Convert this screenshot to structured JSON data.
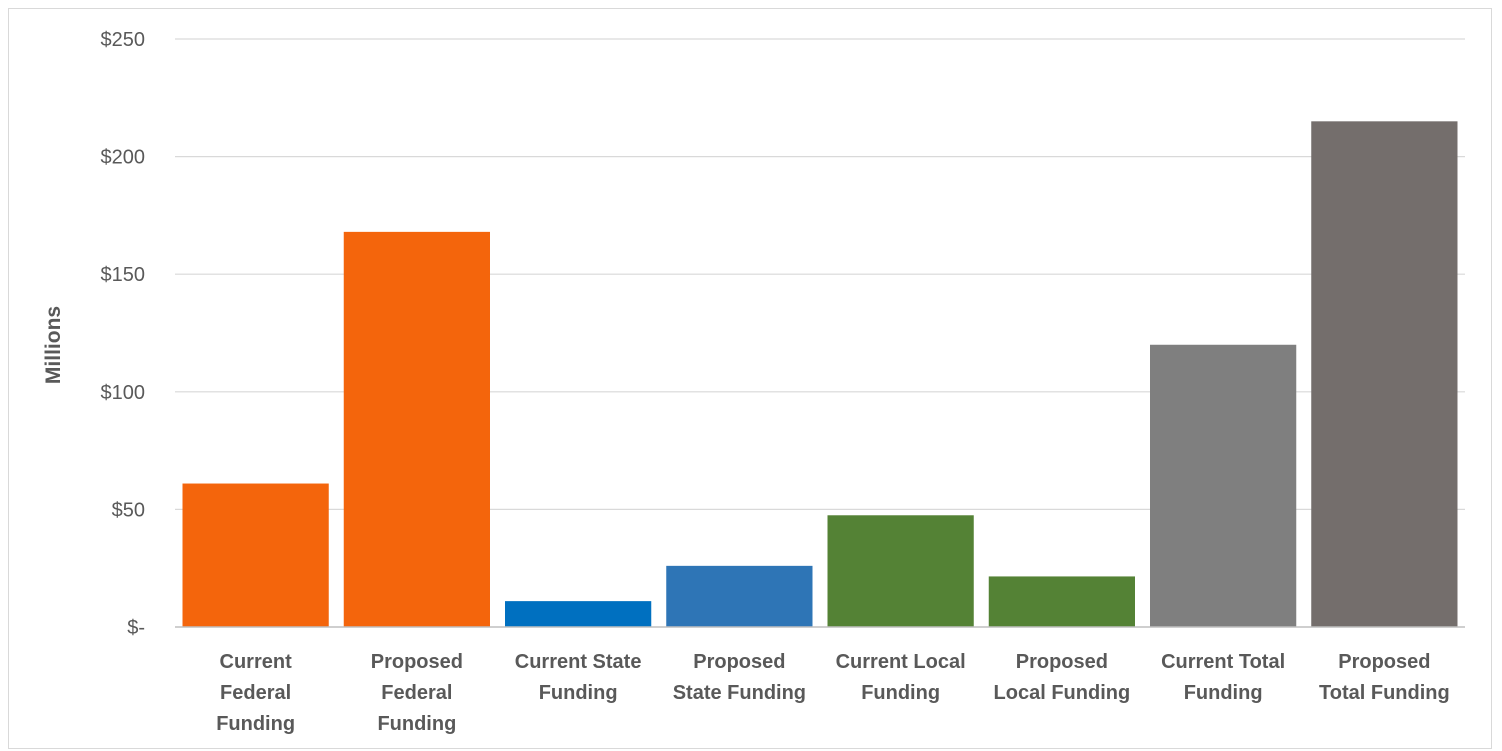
{
  "chart_data": {
    "type": "bar",
    "title": "",
    "xlabel": "",
    "ylabel": "Millions",
    "ylim": [
      0,
      250
    ],
    "y_ticks": [
      0,
      50,
      100,
      150,
      200,
      250
    ],
    "y_tick_labels": [
      "$-",
      "$50",
      "$100",
      "$150",
      "$200",
      "$250"
    ],
    "grid": true,
    "legend": "none",
    "categories": [
      "Current Federal Funding",
      "Proposed Federal Funding",
      "Current State Funding",
      "Proposed State Funding",
      "Current Local Funding",
      "Proposed Local Funding",
      "Current Total Funding",
      "Proposed Total Funding"
    ],
    "category_label_lines": [
      [
        "Current",
        "Federal",
        "Funding"
      ],
      [
        "Proposed",
        "Federal",
        "Funding"
      ],
      [
        "Current State",
        "Funding"
      ],
      [
        "Proposed",
        "State Funding"
      ],
      [
        "Current Local",
        "Funding"
      ],
      [
        "Proposed",
        "Local Funding"
      ],
      [
        "Current Total",
        "Funding"
      ],
      [
        "Proposed",
        "Total Funding"
      ]
    ],
    "values": [
      61,
      168,
      11,
      26,
      47.5,
      21.5,
      120,
      215
    ],
    "bar_colors": [
      "#F4650C",
      "#F4650C",
      "#0070C0",
      "#2E75B6",
      "#548235",
      "#548235",
      "#7F7F7F",
      "#746E6C"
    ],
    "gridline_color": "#d9d9d9",
    "axis_color": "#bfbfbf"
  }
}
